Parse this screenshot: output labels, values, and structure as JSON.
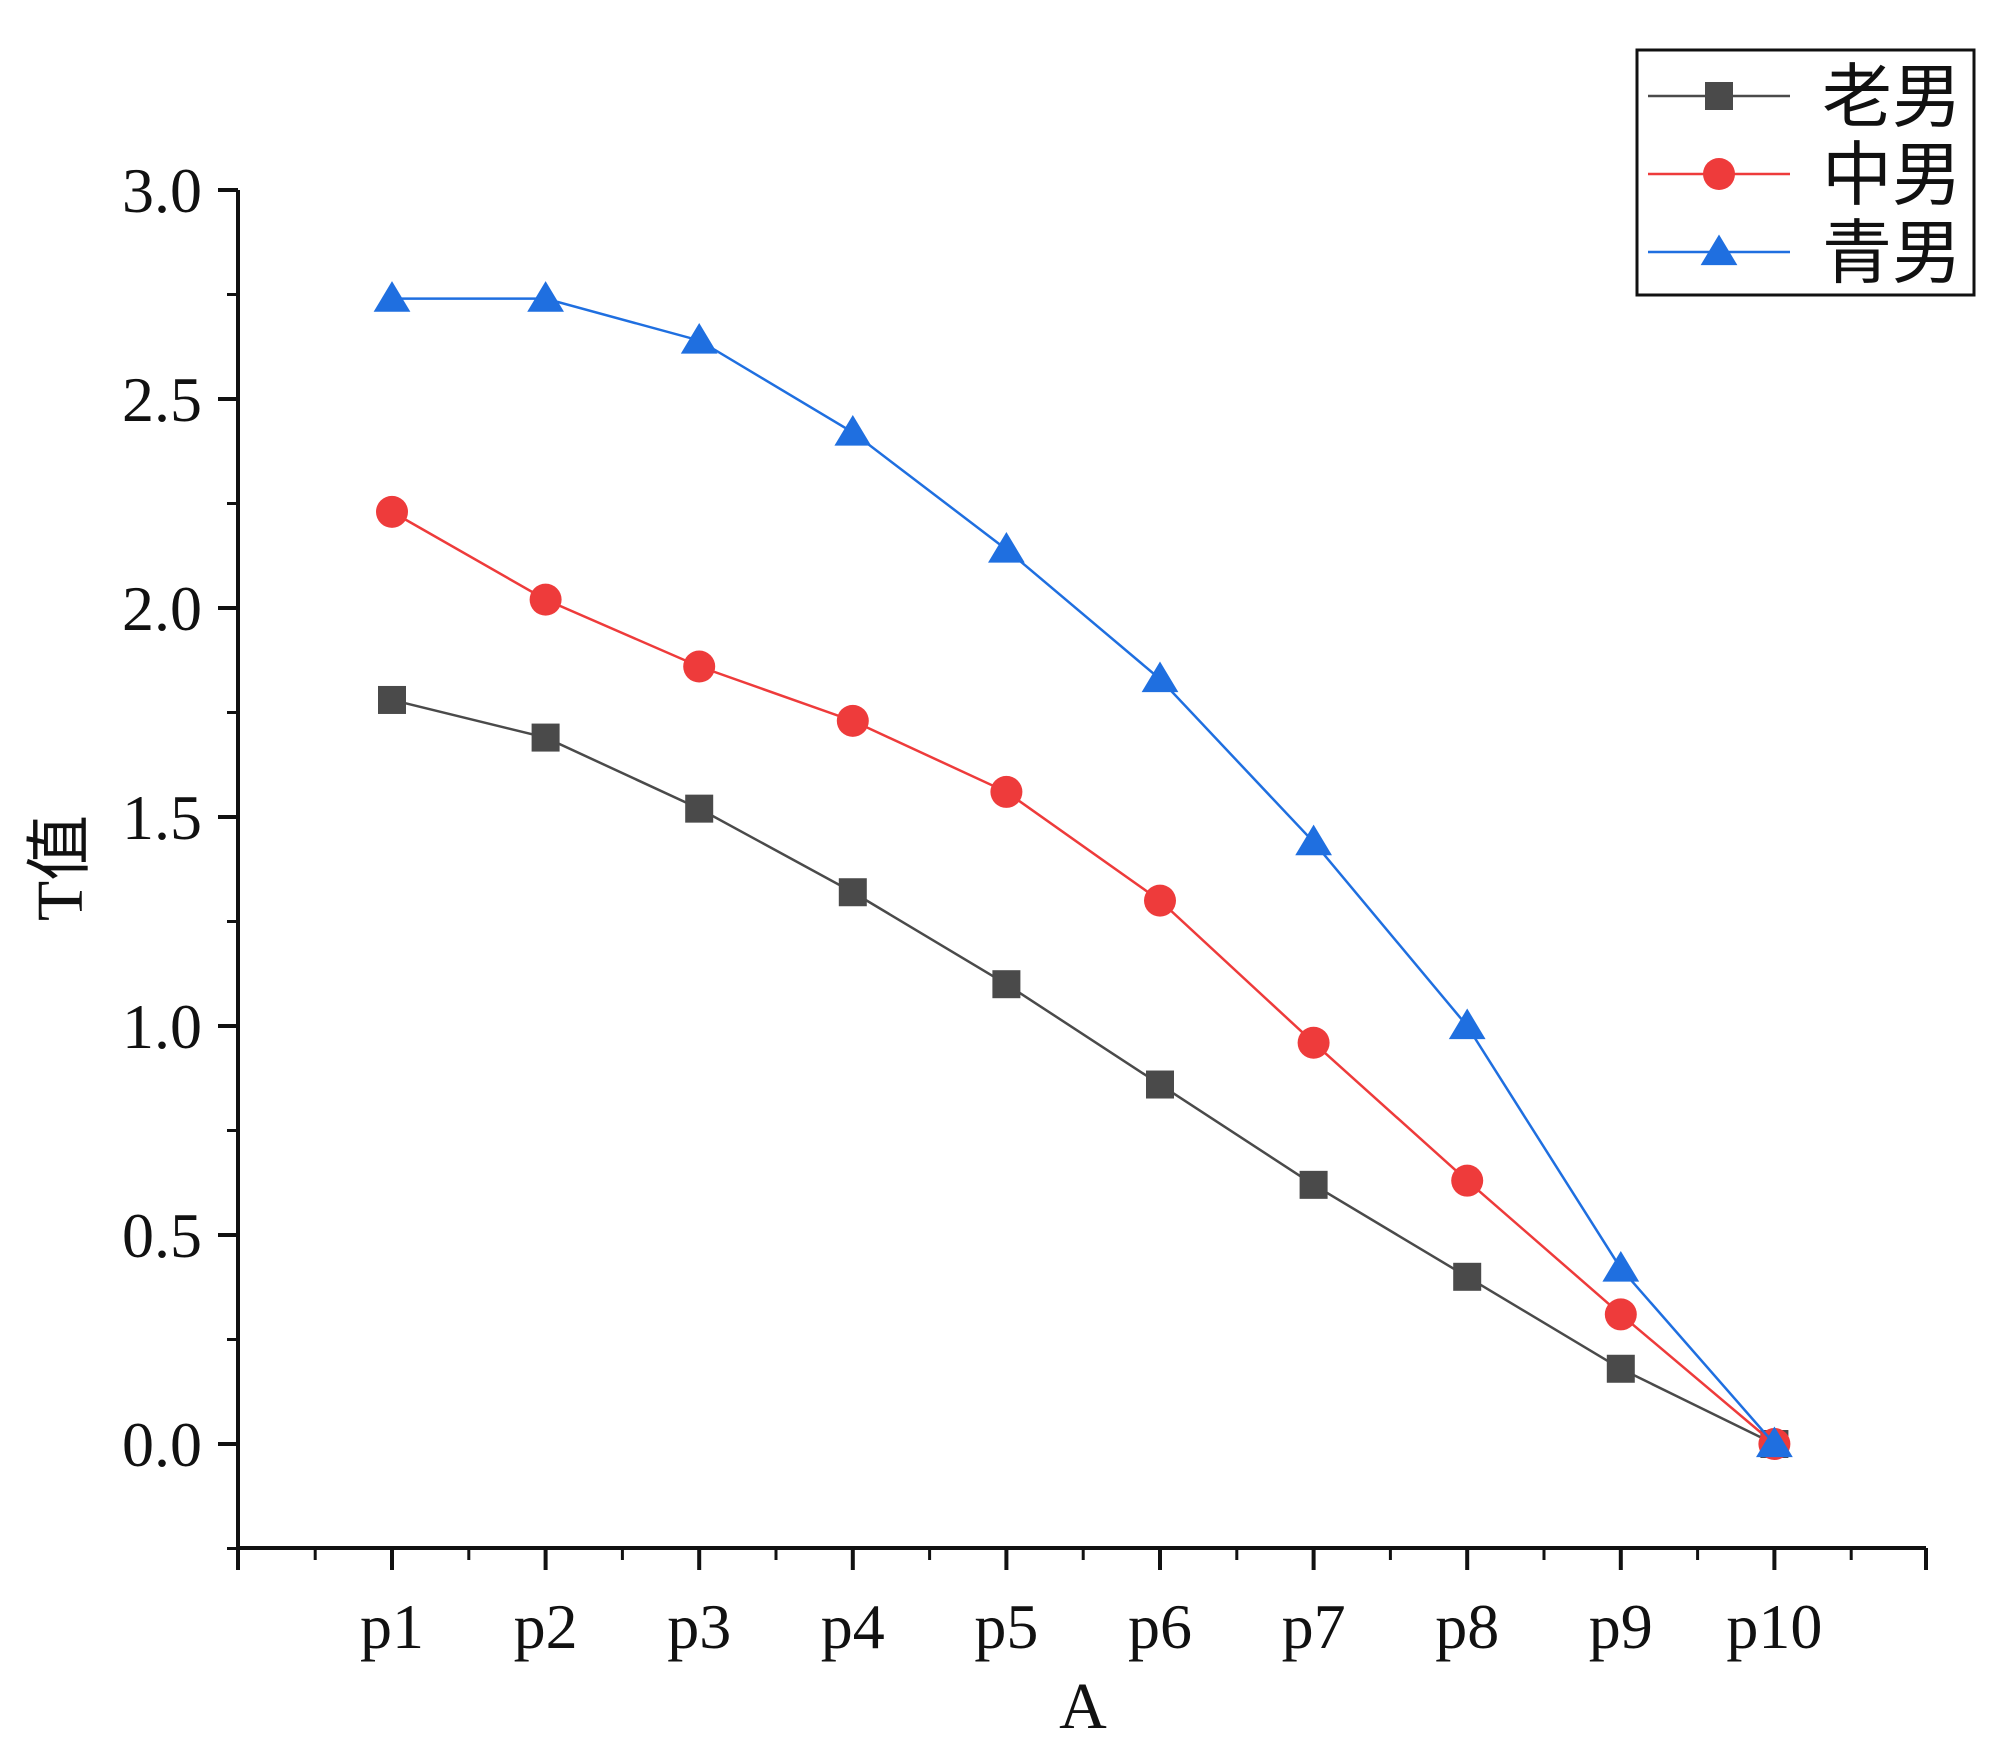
{
  "chart_data": {
    "type": "line",
    "title": "",
    "xlabel": "A",
    "ylabel": "T值",
    "categories": [
      "p1",
      "p2",
      "p3",
      "p4",
      "p5",
      "p6",
      "p7",
      "p8",
      "p9",
      "p10"
    ],
    "ylim": [
      -0.25,
      3.0
    ],
    "yticks": [
      0.0,
      0.5,
      1.0,
      1.5,
      2.0,
      2.5,
      3.0
    ],
    "ytick_labels": [
      "0.0",
      "0.5",
      "1.0",
      "1.5",
      "2.0",
      "2.5",
      "3.0"
    ],
    "grid": false,
    "legend_position": "top-right",
    "series": [
      {
        "name": "老男",
        "color": "#4a4a4a",
        "marker": "square",
        "values": [
          1.78,
          1.69,
          1.52,
          1.32,
          1.1,
          0.86,
          0.62,
          0.4,
          0.18,
          0.0
        ]
      },
      {
        "name": "中男",
        "color": "#ee3b3b",
        "marker": "circle",
        "values": [
          2.23,
          2.02,
          1.86,
          1.73,
          1.56,
          1.3,
          0.96,
          0.63,
          0.31,
          0.0
        ]
      },
      {
        "name": "青男",
        "color": "#1f6fe0",
        "marker": "triangle",
        "values": [
          2.74,
          2.74,
          2.64,
          2.42,
          2.14,
          1.83,
          1.44,
          1.0,
          0.42,
          0.0
        ]
      }
    ]
  }
}
